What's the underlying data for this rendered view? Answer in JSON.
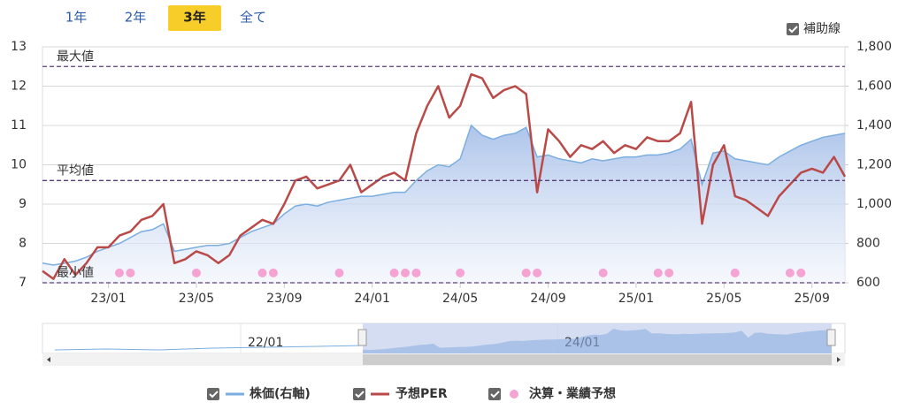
{
  "ui": {
    "range_buttons": [
      "1年",
      "2年",
      "3年",
      "全て"
    ],
    "aux_toggle": "補助線"
  },
  "navigator": {
    "labels": [
      "22/01",
      "24/01"
    ]
  },
  "chart_data": {
    "type": "line",
    "categories": [
      null,
      null,
      null,
      null,
      null,
      null,
      "23/01",
      null,
      null,
      null,
      null,
      null,
      null,
      null,
      "23/05",
      null,
      null,
      null,
      null,
      null,
      null,
      null,
      "23/09",
      null,
      null,
      null,
      null,
      null,
      null,
      null,
      "24/01",
      null,
      null,
      null,
      null,
      null,
      null,
      null,
      "24/05",
      null,
      null,
      null,
      null,
      null,
      null,
      null,
      "24/09",
      null,
      null,
      null,
      null,
      null,
      null,
      null,
      "25/01",
      null,
      null,
      null,
      null,
      null,
      null,
      null,
      "25/05",
      null,
      null,
      null,
      null,
      null,
      null,
      null,
      "25/09",
      null,
      null,
      null
    ],
    "series": [
      {
        "name": "株価(右軸)",
        "color": "#7aaee0",
        "axis": "y2",
        "kind": "area",
        "values": [
          700,
          690,
          700,
          710,
          730,
          760,
          780,
          800,
          830,
          860,
          870,
          900,
          760,
          770,
          780,
          790,
          790,
          800,
          830,
          860,
          880,
          900,
          950,
          990,
          1000,
          990,
          1010,
          1020,
          1030,
          1040,
          1040,
          1050,
          1060,
          1060,
          1120,
          1170,
          1200,
          1190,
          1230,
          1400,
          1350,
          1330,
          1350,
          1360,
          1390,
          1240,
          1250,
          1230,
          1220,
          1210,
          1230,
          1220,
          1230,
          1240,
          1240,
          1250,
          1250,
          1260,
          1280,
          1330,
          1100,
          1260,
          1270,
          1230,
          1220,
          1210,
          1200,
          1240,
          1270,
          1300,
          1320,
          1340,
          1350,
          1360
        ]
      },
      {
        "name": "予想PER",
        "color": "#b94a48",
        "kind": "line",
        "values": [
          7.3,
          7.1,
          7.6,
          7.2,
          7.5,
          7.9,
          7.9,
          8.2,
          8.3,
          8.6,
          8.7,
          9.0,
          7.5,
          7.6,
          7.8,
          7.7,
          7.5,
          7.7,
          8.2,
          8.4,
          8.6,
          8.5,
          9.0,
          9.6,
          9.7,
          9.4,
          9.5,
          9.6,
          10.0,
          9.3,
          9.5,
          9.7,
          9.8,
          9.6,
          10.8,
          11.5,
          12.0,
          11.2,
          11.5,
          12.3,
          12.2,
          11.7,
          11.9,
          12.0,
          11.8,
          9.3,
          10.9,
          10.6,
          10.2,
          10.5,
          10.4,
          10.6,
          10.3,
          10.5,
          10.4,
          10.7,
          10.6,
          10.6,
          10.8,
          11.6,
          8.5,
          10.0,
          10.5,
          9.2,
          9.1,
          8.9,
          8.7,
          9.2,
          9.5,
          9.8,
          9.9,
          9.8,
          10.2,
          9.7
        ]
      },
      {
        "name": "決算・業績予想",
        "color": "#f5a3d3",
        "kind": "scatter",
        "values": [
          null,
          null,
          null,
          null,
          null,
          null,
          null,
          7.25,
          7.25,
          null,
          null,
          null,
          null,
          null,
          7.25,
          null,
          null,
          null,
          null,
          null,
          7.25,
          7.25,
          null,
          null,
          null,
          null,
          null,
          7.25,
          null,
          null,
          null,
          null,
          7.25,
          7.25,
          7.25,
          null,
          null,
          null,
          7.25,
          null,
          null,
          null,
          null,
          null,
          7.25,
          7.25,
          null,
          null,
          null,
          null,
          null,
          7.25,
          null,
          null,
          null,
          null,
          7.25,
          7.25,
          null,
          null,
          null,
          null,
          null,
          7.25,
          null,
          null,
          null,
          null,
          7.25,
          7.25,
          null,
          null,
          null,
          null
        ]
      }
    ],
    "ylim": [
      7,
      13
    ],
    "yticks": [
      7,
      8,
      9,
      10,
      11,
      12,
      13
    ],
    "y2lim": [
      600,
      1800
    ],
    "y2ticks": [
      600,
      800,
      {
        "value": 1000,
        "label": "1,000"
      },
      {
        "value": 1200,
        "label": "1,200"
      },
      {
        "value": 1400,
        "label": "1,400"
      },
      {
        "value": 1600,
        "label": "1,600"
      },
      {
        "value": 1800,
        "label": "1,800"
      }
    ],
    "reference_lines": [
      {
        "label": "最大値",
        "value": 12.5
      },
      {
        "label": "平均値",
        "value": 9.6
      },
      {
        "label": "最小値",
        "value": 7.0
      }
    ],
    "grid": true
  }
}
